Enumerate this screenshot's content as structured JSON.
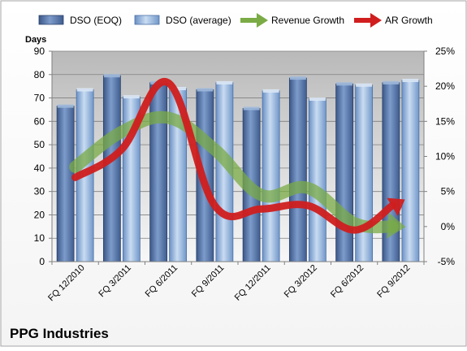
{
  "company": "PPG Industries",
  "chart_data": {
    "type": "bar",
    "subtype": "combo bar + line (dual axis)",
    "categories": [
      "FQ 12/2010",
      "FQ 3/2011",
      "FQ 6/2011",
      "FQ 9/2011",
      "FQ 12/2011",
      "FQ 3/2012",
      "FQ 6/2012",
      "FQ 9/2012"
    ],
    "y_left": {
      "label": "Days",
      "min": 0,
      "max": 90,
      "ticks": [
        0,
        10,
        20,
        30,
        40,
        50,
        60,
        70,
        80,
        90
      ]
    },
    "y_right": {
      "min": -5,
      "max": 25,
      "ticks": [
        -5,
        0,
        5,
        10,
        15,
        20,
        25
      ],
      "tick_suffix": "%"
    },
    "legend_position": "top",
    "grid": true,
    "series": [
      {
        "name": "DSO (EOQ)",
        "type": "bar",
        "axis": "left",
        "color": "#4f6fa6",
        "values": [
          66.5,
          79.5,
          76.5,
          73.5,
          65.5,
          78.5,
          76,
          76.5
        ]
      },
      {
        "name": "DSO (average)",
        "type": "bar",
        "axis": "left",
        "color": "#8db4e2",
        "values": [
          73.5,
          70.5,
          74,
          76.5,
          73,
          69.5,
          75.5,
          77.5
        ]
      },
      {
        "name": "Revenue Growth",
        "type": "line",
        "axis": "right",
        "color": "#77a640",
        "values": [
          8.5,
          13.5,
          15.5,
          11,
          4.5,
          5.5,
          0.5,
          0
        ]
      },
      {
        "name": "AR Growth",
        "type": "line",
        "axis": "right",
        "color": "#cc2222",
        "values": [
          7,
          11,
          20.5,
          3,
          2.5,
          3,
          -0.5,
          3.5
        ]
      }
    ]
  }
}
